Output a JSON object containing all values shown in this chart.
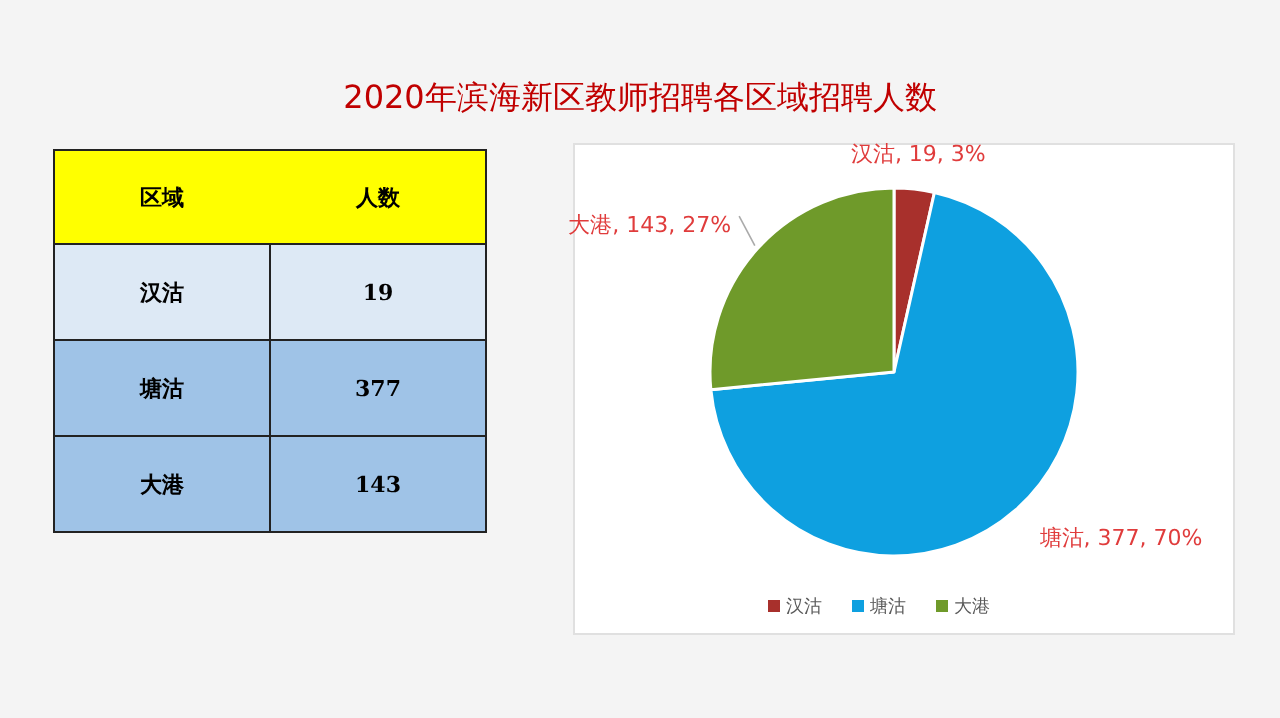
{
  "chart_data": [
    {
      "type": "other",
      "title": "2020年滨海新区教师招聘各区域招聘人数",
      "xlabel": "区域",
      "ylabel": "人数",
      "categories": [
        "汉沽",
        "塘沽",
        "大港"
      ],
      "value_labels": [
        "19",
        "377",
        "143"
      ],
      "colors": [
        "#dde9f5",
        "#9fc3e7",
        "#9fc3e7"
      ]
    },
    {
      "type": "pie",
      "categories": [
        "汉沽",
        "塘沽",
        "大港"
      ],
      "values": [
        19,
        377,
        143
      ],
      "colors": [
        "#a8302c",
        "#0ea0e0",
        "#6f9a2a"
      ],
      "value_labels": [
        "汉沽, 19, 3%",
        "塘沽, 377, 70%",
        "大港, 143, 27%"
      ],
      "legend": "bottom"
    }
  ]
}
